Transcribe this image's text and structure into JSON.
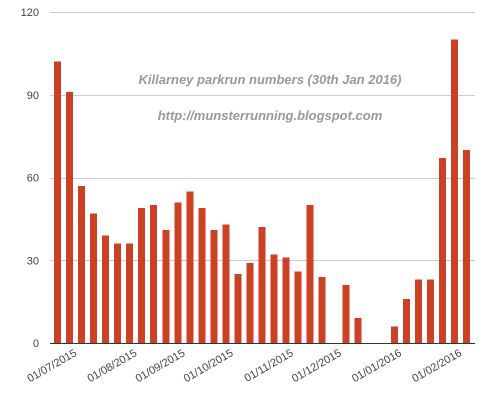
{
  "chart_data": {
    "type": "bar",
    "title": "Killarney parkrun numbers (30th Jan 2016)",
    "subtitle": "http://munsterrunning.blogspot.com",
    "xlabel": "",
    "ylabel": "",
    "ylim": [
      0,
      120
    ],
    "yticks": [
      0,
      30,
      60,
      90,
      120
    ],
    "grid": true,
    "legend": "none",
    "bar_color": "#cc4125",
    "x_tick_labels": [
      "01/07/2015",
      "01/08/2015",
      "01/09/2015",
      "01/10/2015",
      "01/11/2015",
      "01/12/2015",
      "01/01/2016",
      "01/02/2016"
    ],
    "x_tick_label_bar_index": [
      1,
      6,
      10,
      14,
      19,
      23,
      28,
      33
    ],
    "values": [
      102,
      91,
      57,
      47,
      39,
      36,
      36,
      49,
      50,
      41,
      51,
      55,
      49,
      41,
      43,
      25,
      29,
      42,
      32,
      31,
      26,
      50,
      24,
      0,
      21,
      9,
      0,
      0,
      6,
      16,
      23,
      23,
      67,
      110,
      70
    ]
  }
}
